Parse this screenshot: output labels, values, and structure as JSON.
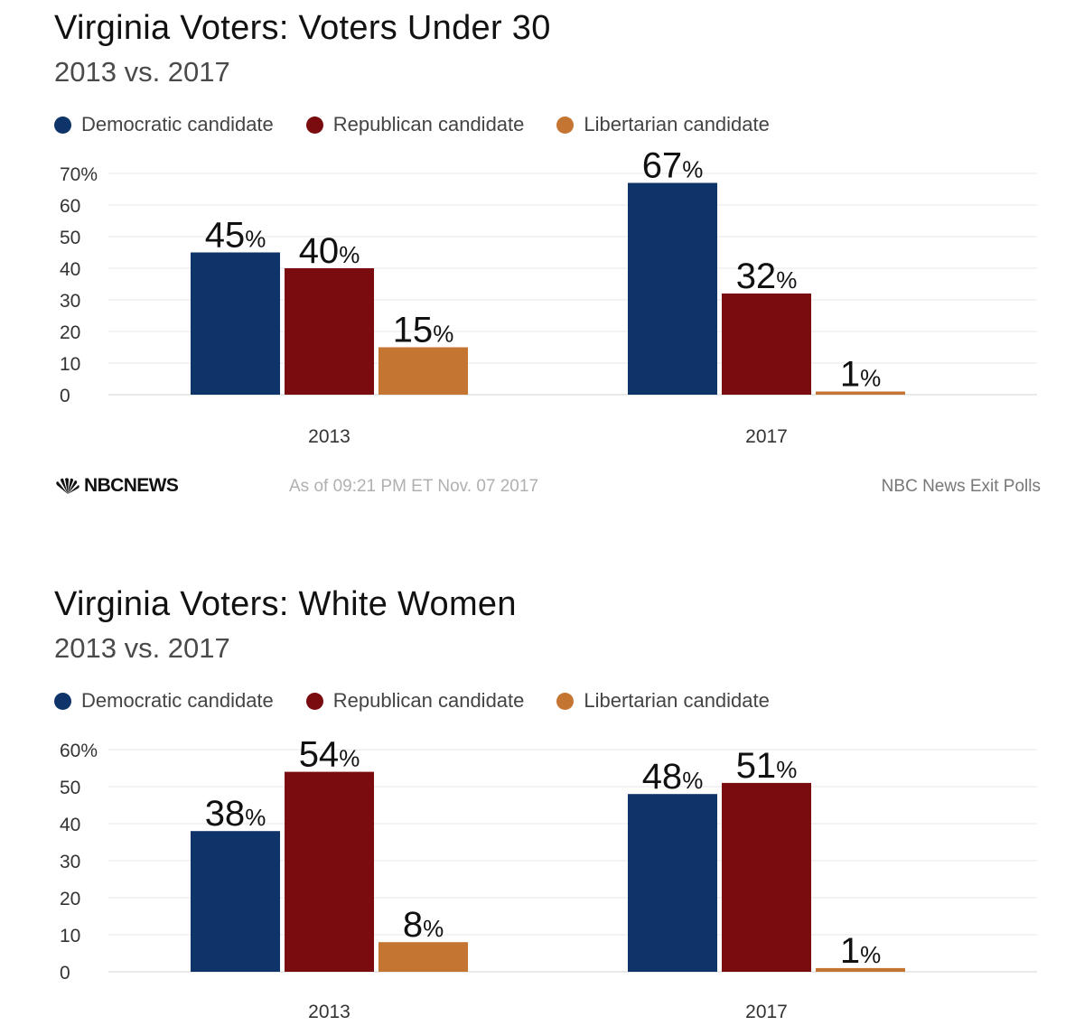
{
  "brand": {
    "logo_text": "NBCNEWS"
  },
  "footer": {
    "timestamp": "As of 09:21 PM ET Nov. 07 2017",
    "source": "NBC News Exit Polls"
  },
  "legend": [
    {
      "label": "Democratic candidate",
      "color": "#0f3469"
    },
    {
      "label": "Republican candidate",
      "color": "#7a0b0f"
    },
    {
      "label": "Libertarian candidate",
      "color": "#c57532"
    }
  ],
  "chart_data": [
    {
      "type": "bar",
      "title": "Virginia Voters: Voters Under 30",
      "subtitle": "2013 vs. 2017",
      "categories": [
        "2013",
        "2017"
      ],
      "series": [
        {
          "name": "Democratic candidate",
          "color": "#0f3469",
          "values": [
            45,
            67
          ]
        },
        {
          "name": "Republican candidate",
          "color": "#7a0b0f",
          "values": [
            40,
            32
          ]
        },
        {
          "name": "Libertarian candidate",
          "color": "#c57532",
          "values": [
            15,
            1
          ]
        }
      ],
      "ylim": [
        0,
        70
      ],
      "yticks": [
        "0",
        "10",
        "20",
        "30",
        "40",
        "50",
        "60",
        "70%"
      ],
      "value_suffix": "%",
      "grid": true,
      "legend_position": "top-left"
    },
    {
      "type": "bar",
      "title": "Virginia Voters: White Women",
      "subtitle": "2013 vs. 2017",
      "categories": [
        "2013",
        "2017"
      ],
      "series": [
        {
          "name": "Democratic candidate",
          "color": "#0f3469",
          "values": [
            38,
            48
          ]
        },
        {
          "name": "Republican candidate",
          "color": "#7a0b0f",
          "values": [
            54,
            51
          ]
        },
        {
          "name": "Libertarian candidate",
          "color": "#c57532",
          "values": [
            8,
            1
          ]
        }
      ],
      "ylim": [
        0,
        60
      ],
      "yticks": [
        "0",
        "10",
        "20",
        "30",
        "40",
        "50",
        "60%"
      ],
      "value_suffix": "%",
      "grid": true,
      "legend_position": "top-left"
    }
  ]
}
